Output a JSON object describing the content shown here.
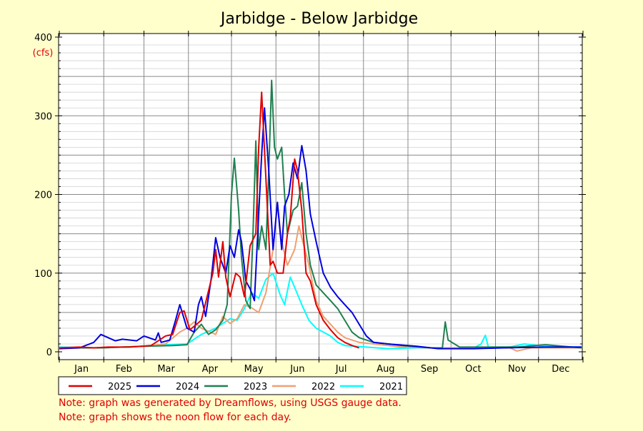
{
  "chart_data": {
    "type": "line",
    "title": "Jarbidge - Below Jarbidge",
    "ylabel": "(cfs)",
    "xlabel": "",
    "ylim": [
      0,
      400
    ],
    "yticks": [
      0,
      100,
      200,
      300,
      400
    ],
    "grid": true,
    "legend_position": "bottom",
    "categories": [
      "Jan",
      "Feb",
      "Mar",
      "Apr",
      "May",
      "Jun",
      "Jul",
      "Aug",
      "Sep",
      "Oct",
      "Nov",
      "Dec"
    ],
    "colors": {
      "background": "#ffffcc",
      "plot_background": "#ffffff",
      "grid": "#808080",
      "note": "#e00000"
    },
    "series": [
      {
        "name": "2021",
        "color": "#00ffff",
        "points": [
          [
            1,
            6
          ],
          [
            30,
            5
          ],
          [
            60,
            7
          ],
          [
            75,
            9
          ],
          [
            90,
            10
          ],
          [
            100,
            22
          ],
          [
            110,
            30
          ],
          [
            120,
            42
          ],
          [
            125,
            40
          ],
          [
            130,
            55
          ],
          [
            135,
            75
          ],
          [
            140,
            68
          ],
          [
            145,
            92
          ],
          [
            150,
            100
          ],
          [
            155,
            72
          ],
          [
            158,
            60
          ],
          [
            162,
            95
          ],
          [
            165,
            82
          ],
          [
            170,
            60
          ],
          [
            175,
            40
          ],
          [
            180,
            30
          ],
          [
            185,
            25
          ],
          [
            190,
            20
          ],
          [
            195,
            12
          ],
          [
            200,
            8
          ],
          [
            215,
            6
          ],
          [
            230,
            4
          ],
          [
            250,
            5
          ],
          [
            270,
            5
          ],
          [
            290,
            5
          ],
          [
            295,
            10
          ],
          [
            298,
            21
          ],
          [
            300,
            6
          ],
          [
            315,
            6
          ],
          [
            325,
            10
          ],
          [
            340,
            7
          ],
          [
            365,
            6
          ]
        ]
      },
      {
        "name": "2022",
        "color": "#f0a070",
        "points": [
          [
            1,
            5
          ],
          [
            30,
            5
          ],
          [
            60,
            7
          ],
          [
            75,
            10
          ],
          [
            85,
            25
          ],
          [
            90,
            30
          ],
          [
            95,
            38
          ],
          [
            100,
            30
          ],
          [
            110,
            22
          ],
          [
            115,
            45
          ],
          [
            120,
            36
          ],
          [
            125,
            42
          ],
          [
            130,
            60
          ],
          [
            135,
            56
          ],
          [
            140,
            50
          ],
          [
            145,
            75
          ],
          [
            150,
            130
          ],
          [
            153,
            188
          ],
          [
            156,
            140
          ],
          [
            160,
            110
          ],
          [
            165,
            130
          ],
          [
            168,
            160
          ],
          [
            170,
            145
          ],
          [
            175,
            110
          ],
          [
            180,
            65
          ],
          [
            185,
            45
          ],
          [
            190,
            35
          ],
          [
            195,
            25
          ],
          [
            200,
            18
          ],
          [
            210,
            12
          ],
          [
            220,
            10
          ],
          [
            240,
            6
          ],
          [
            260,
            5
          ],
          [
            280,
            5
          ],
          [
            300,
            5
          ],
          [
            315,
            5
          ],
          [
            320,
            1
          ],
          [
            330,
            5
          ],
          [
            365,
            5
          ]
        ]
      },
      {
        "name": "2023",
        "color": "#208050",
        "points": [
          [
            1,
            5
          ],
          [
            30,
            5
          ],
          [
            60,
            7
          ],
          [
            80,
            8
          ],
          [
            90,
            9
          ],
          [
            95,
            25
          ],
          [
            100,
            35
          ],
          [
            105,
            22
          ],
          [
            110,
            28
          ],
          [
            115,
            40
          ],
          [
            118,
            60
          ],
          [
            121,
            200
          ],
          [
            123,
            246
          ],
          [
            126,
            180
          ],
          [
            128,
            120
          ],
          [
            131,
            65
          ],
          [
            134,
            55
          ],
          [
            136,
            150
          ],
          [
            138,
            268
          ],
          [
            140,
            130
          ],
          [
            142,
            160
          ],
          [
            145,
            130
          ],
          [
            147,
            230
          ],
          [
            149,
            345
          ],
          [
            151,
            260
          ],
          [
            153,
            245
          ],
          [
            156,
            260
          ],
          [
            158,
            200
          ],
          [
            160,
            150
          ],
          [
            164,
            180
          ],
          [
            167,
            185
          ],
          [
            170,
            215
          ],
          [
            173,
            150
          ],
          [
            176,
            110
          ],
          [
            180,
            85
          ],
          [
            185,
            75
          ],
          [
            190,
            65
          ],
          [
            195,
            55
          ],
          [
            200,
            40
          ],
          [
            205,
            25
          ],
          [
            210,
            18
          ],
          [
            220,
            12
          ],
          [
            240,
            8
          ],
          [
            260,
            5
          ],
          [
            268,
            5
          ],
          [
            270,
            38
          ],
          [
            272,
            15
          ],
          [
            280,
            6
          ],
          [
            300,
            6
          ],
          [
            320,
            6
          ],
          [
            340,
            9
          ],
          [
            365,
            5
          ]
        ]
      },
      {
        "name": "2024",
        "color": "#0000e0",
        "points": [
          [
            1,
            4
          ],
          [
            15,
            5
          ],
          [
            25,
            12
          ],
          [
            30,
            22
          ],
          [
            35,
            18
          ],
          [
            40,
            14
          ],
          [
            45,
            16
          ],
          [
            55,
            14
          ],
          [
            60,
            20
          ],
          [
            68,
            15
          ],
          [
            70,
            24
          ],
          [
            72,
            12
          ],
          [
            78,
            15
          ],
          [
            82,
            40
          ],
          [
            85,
            60
          ],
          [
            90,
            30
          ],
          [
            95,
            25
          ],
          [
            98,
            60
          ],
          [
            100,
            70
          ],
          [
            103,
            45
          ],
          [
            107,
            95
          ],
          [
            110,
            145
          ],
          [
            113,
            120
          ],
          [
            117,
            100
          ],
          [
            120,
            135
          ],
          [
            123,
            120
          ],
          [
            126,
            155
          ],
          [
            128,
            140
          ],
          [
            131,
            90
          ],
          [
            134,
            80
          ],
          [
            137,
            65
          ],
          [
            140,
            175
          ],
          [
            142,
            250
          ],
          [
            144,
            310
          ],
          [
            147,
            230
          ],
          [
            150,
            130
          ],
          [
            153,
            190
          ],
          [
            156,
            130
          ],
          [
            158,
            185
          ],
          [
            161,
            200
          ],
          [
            164,
            240
          ],
          [
            167,
            220
          ],
          [
            170,
            262
          ],
          [
            173,
            230
          ],
          [
            176,
            175
          ],
          [
            180,
            140
          ],
          [
            185,
            100
          ],
          [
            190,
            82
          ],
          [
            195,
            70
          ],
          [
            200,
            60
          ],
          [
            205,
            50
          ],
          [
            210,
            35
          ],
          [
            215,
            20
          ],
          [
            220,
            12
          ],
          [
            230,
            10
          ],
          [
            250,
            7
          ],
          [
            265,
            4
          ],
          [
            290,
            4
          ],
          [
            310,
            5
          ],
          [
            340,
            6
          ],
          [
            365,
            6
          ]
        ]
      },
      {
        "name": "2025",
        "color": "#e00000",
        "points": [
          [
            1,
            5
          ],
          [
            15,
            6
          ],
          [
            25,
            5
          ],
          [
            35,
            6
          ],
          [
            50,
            6
          ],
          [
            65,
            8
          ],
          [
            75,
            20
          ],
          [
            80,
            22
          ],
          [
            85,
            50
          ],
          [
            88,
            52
          ],
          [
            92,
            28
          ],
          [
            100,
            40
          ],
          [
            108,
            100
          ],
          [
            110,
            130
          ],
          [
            112,
            95
          ],
          [
            115,
            140
          ],
          [
            117,
            95
          ],
          [
            120,
            70
          ],
          [
            124,
            100
          ],
          [
            127,
            95
          ],
          [
            130,
            70
          ],
          [
            134,
            135
          ],
          [
            138,
            150
          ],
          [
            140,
            260
          ],
          [
            142,
            330
          ],
          [
            145,
            220
          ],
          [
            148,
            110
          ],
          [
            150,
            115
          ],
          [
            153,
            100
          ],
          [
            157,
            100
          ],
          [
            160,
            150
          ],
          [
            162,
            170
          ],
          [
            165,
            245
          ],
          [
            167,
            230
          ],
          [
            170,
            180
          ],
          [
            173,
            100
          ],
          [
            176,
            90
          ],
          [
            180,
            60
          ],
          [
            185,
            40
          ],
          [
            190,
            28
          ],
          [
            195,
            18
          ],
          [
            200,
            12
          ],
          [
            205,
            8
          ],
          [
            210,
            5
          ]
        ]
      }
    ]
  },
  "notes": [
    "Note: graph was generated by Dreamflows, using USGS gauge data.",
    "Note: graph shows the noon flow for each day."
  ]
}
